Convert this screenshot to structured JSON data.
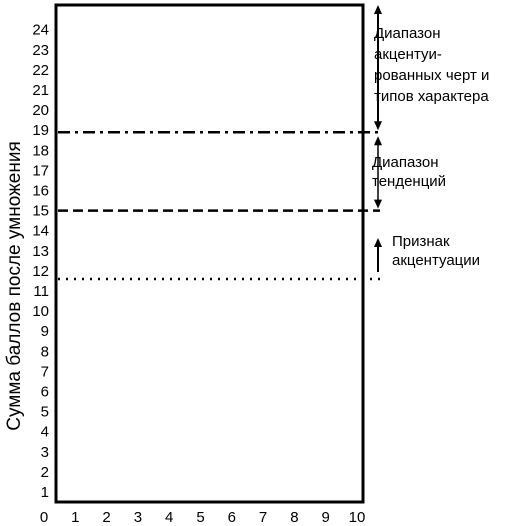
{
  "chart_data": {
    "type": "line",
    "title": "",
    "xlabel": "",
    "ylabel": "Сумма баллов после умножения",
    "x_ticks": [
      0,
      1,
      2,
      3,
      4,
      5,
      6,
      7,
      8,
      9,
      10
    ],
    "y_ticks": [
      1,
      2,
      3,
      4,
      5,
      6,
      7,
      8,
      9,
      10,
      11,
      12,
      13,
      14,
      15,
      16,
      17,
      18,
      19,
      20,
      21,
      22,
      23,
      24
    ],
    "xlim": [
      0,
      10
    ],
    "ylim": [
      0.5,
      24.7
    ],
    "grid": false,
    "thresholds": [
      {
        "y": 11.6,
        "style": "dotted"
      },
      {
        "y": 15.0,
        "style": "dashed"
      },
      {
        "y": 18.9,
        "style": "dash-dot"
      }
    ],
    "ranges": [
      {
        "label": [
          "Диапазон",
          "акцентуи-",
          "рованных черт и",
          "типов характера"
        ],
        "from": 18.9,
        "to": 24.7,
        "arrow": "both"
      },
      {
        "label": [
          "Диапазон",
          "тенденций"
        ],
        "from": 15.0,
        "to": 18.9,
        "arrow": "both"
      },
      {
        "label": [
          "Признак",
          "акцентуации"
        ],
        "from": 11.6,
        "to": 13.0,
        "arrow": "up"
      }
    ]
  }
}
